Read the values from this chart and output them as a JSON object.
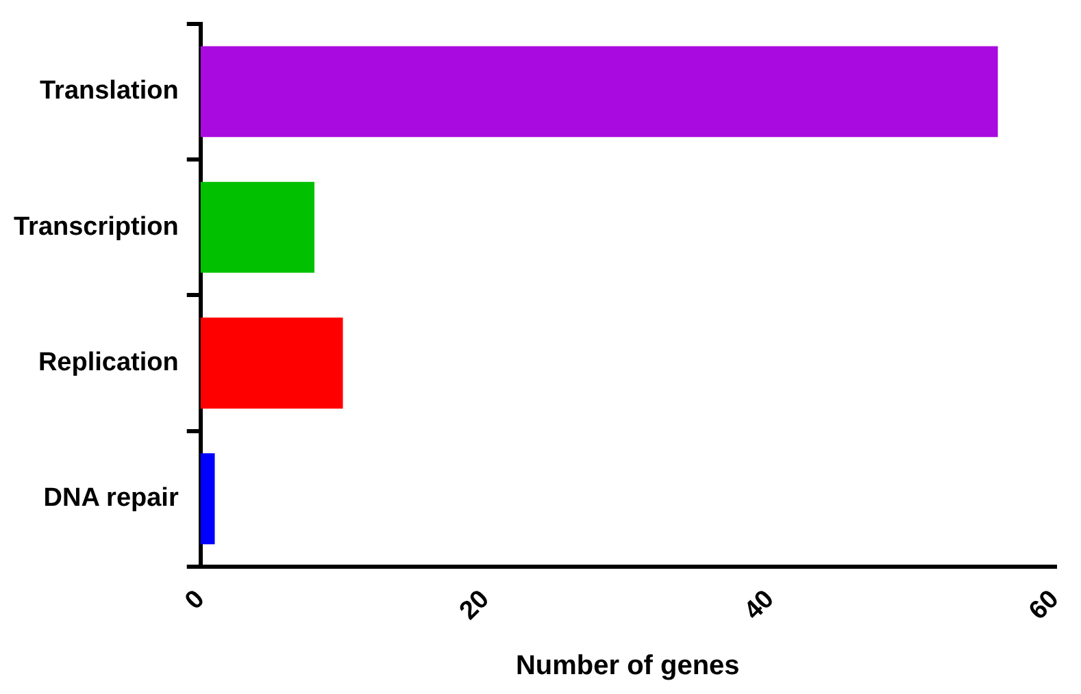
{
  "chart_data": {
    "type": "bar",
    "orientation": "horizontal",
    "xlabel": "Number of genes",
    "categories": [
      "Translation",
      "Transcription",
      "Replication",
      "DNA repair"
    ],
    "values": [
      56,
      8,
      10,
      1
    ],
    "colors": [
      "#a90ae0",
      "#00c000",
      "#ff0000",
      "#0000ff"
    ],
    "xlim": [
      0,
      60
    ],
    "xticks": [
      0,
      20,
      40,
      60
    ],
    "grid": false,
    "legend": false
  }
}
